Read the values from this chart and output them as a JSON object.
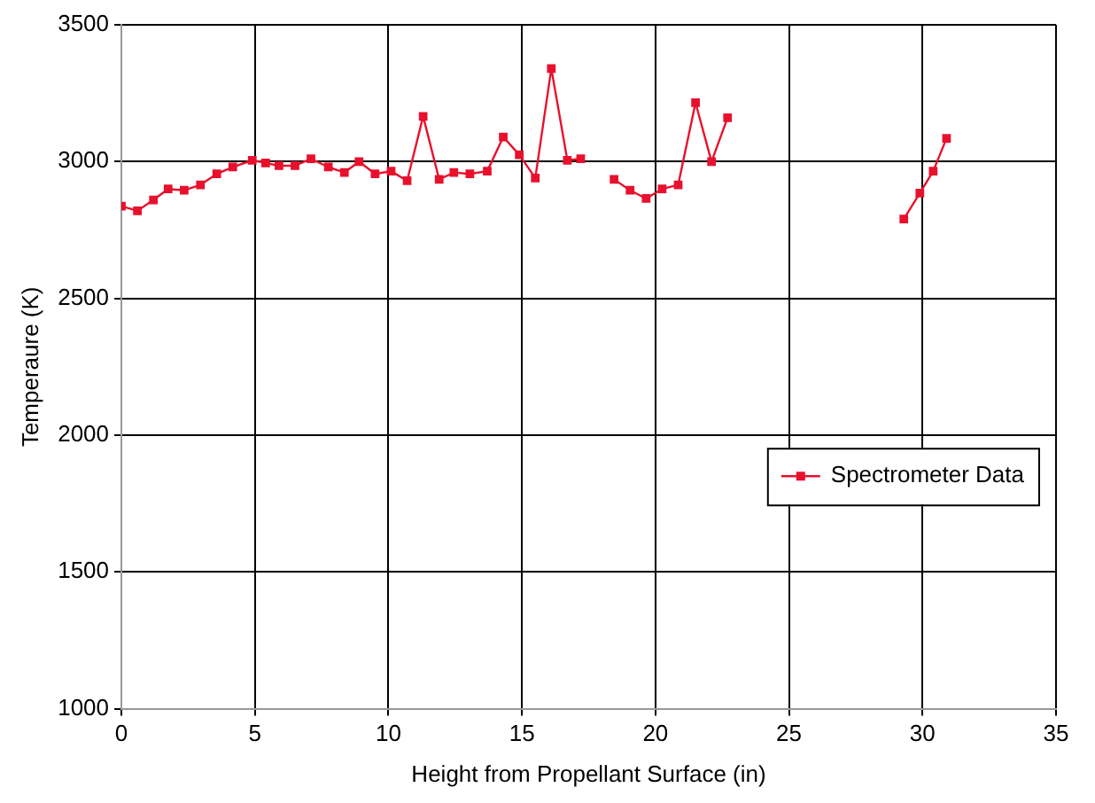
{
  "chart_data": {
    "type": "line",
    "xlabel": "Height from Propellant Surface (in)",
    "ylabel": "Temperaure (K)",
    "xlim": [
      0,
      35
    ],
    "xticks": [
      0,
      5,
      10,
      15,
      20,
      25,
      30,
      35
    ],
    "ylim": [
      1000,
      3500
    ],
    "yticks": [
      1000,
      1500,
      2000,
      2500,
      3000,
      3500
    ],
    "grid": true,
    "legend": "right",
    "marker": "square",
    "line_style": "solid",
    "series": [
      {
        "name": "Spectrometer Data",
        "color": "#e8112d",
        "x": [
          0,
          0.6,
          1.2,
          1.75,
          2.35,
          2.96,
          3.57,
          4.17,
          4.9,
          5.4,
          5.9,
          6.5,
          7.1,
          7.75,
          8.35,
          8.9,
          9.5,
          10.1,
          10.7,
          11.3,
          11.9,
          12.45,
          13.05,
          13.7,
          14.3,
          14.9,
          15.5,
          16.1,
          16.7,
          17.2,
          17.8,
          18.45,
          19.05,
          19.65,
          20.25,
          20.85,
          21.5,
          22.1,
          22.7,
          26,
          29.3,
          29.9,
          30.4,
          30.9
        ],
        "values": [
          2837,
          2820,
          2860,
          2900,
          2895,
          2915,
          2955,
          2980,
          3005,
          2995,
          2985,
          2985,
          3010,
          2980,
          2960,
          3000,
          2955,
          2965,
          2930,
          3165,
          2935,
          2960,
          2955,
          2965,
          3090,
          3025,
          2940,
          3340,
          3005,
          3010,
          null,
          2935,
          2895,
          2865,
          2900,
          2915,
          3215,
          3000,
          3160,
          null,
          2790,
          2885,
          2965,
          3085
        ]
      }
    ]
  }
}
